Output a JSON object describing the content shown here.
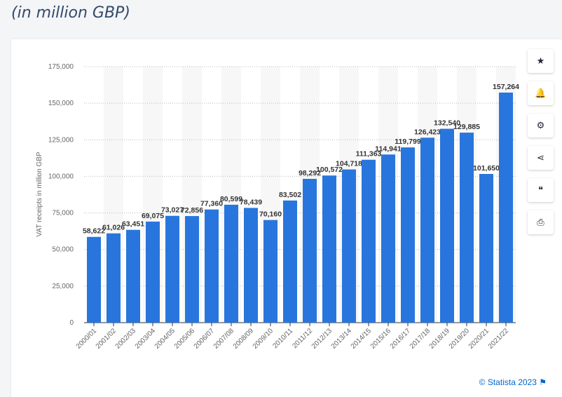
{
  "header": {
    "title": "(in million GBP)"
  },
  "toolbar": [
    {
      "icon": "star-icon",
      "glyph": "★"
    },
    {
      "icon": "bell-icon",
      "glyph": "🔔"
    },
    {
      "icon": "gear-icon",
      "glyph": "⚙"
    },
    {
      "icon": "share-icon",
      "glyph": "⋖"
    },
    {
      "icon": "quote-icon",
      "glyph": "❝"
    },
    {
      "icon": "print-icon",
      "glyph": "⎙"
    }
  ],
  "credit": "© Statista 2023 ⚑",
  "chart_data": {
    "type": "bar",
    "ylabel": "VAT receipts in million GBP",
    "ylim": [
      0,
      175000
    ],
    "yticks": [
      0,
      25000,
      50000,
      75000,
      100000,
      125000,
      150000,
      175000
    ],
    "grid": true,
    "color": "#2876dd",
    "categories": [
      "2000/01",
      "2001/02",
      "2002/03",
      "2003/04",
      "2004/05",
      "2005/06",
      "2006/07",
      "2007/08",
      "2008/09",
      "2009/10",
      "2010/11",
      "2011/12",
      "2012/13",
      "2013/14",
      "2014/15",
      "2015/16",
      "2016/17",
      "2017/18",
      "2018/19",
      "2019/20",
      "2020/21",
      "2021/22"
    ],
    "values": [
      58622,
      61026,
      63451,
      69075,
      73027,
      72856,
      77360,
      80599,
      78439,
      70160,
      83502,
      98292,
      100572,
      104718,
      111363,
      114941,
      119799,
      126423,
      132540,
      129885,
      101650,
      157264
    ]
  }
}
